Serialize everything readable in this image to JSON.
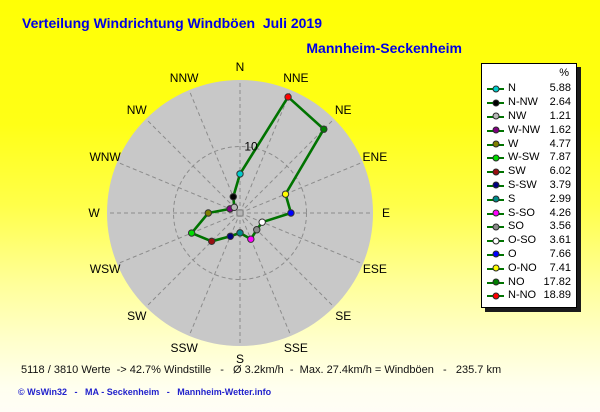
{
  "header": {
    "title": "Verteilung Windrichtung Windböen  Juli 2019",
    "subtitle": "Mannheim-Seckenheim"
  },
  "chart_data": {
    "type": "radar",
    "title": "Verteilung Windrichtung Windböen Juli 2019",
    "subtitle": "Mannheim-Seckenheim",
    "unit": "%",
    "axis_max": 20,
    "grid_circle_values": [
      10,
      20
    ],
    "scale_label": "10",
    "grid_on": true,
    "legend_position": "right",
    "line_color": "#007300",
    "disk_color": "#c8c8c8",
    "grid_color": "#8c8c8c",
    "points": [
      {
        "axis": "N",
        "label": "N",
        "value": 5.88,
        "color": "#00cccc"
      },
      {
        "axis": "NNE",
        "label": "N-NO",
        "value": 18.89,
        "color": "#ff0000"
      },
      {
        "axis": "NE",
        "label": "NO",
        "value": 17.82,
        "color": "#008000"
      },
      {
        "axis": "ENE",
        "label": "O-NO",
        "value": 7.41,
        "color": "#ffff00"
      },
      {
        "axis": "E",
        "label": "O",
        "value": 7.66,
        "color": "#0000ff"
      },
      {
        "axis": "ESE",
        "label": "O-SO",
        "value": 3.61,
        "color": "#ffffff"
      },
      {
        "axis": "SE",
        "label": "SO",
        "value": 3.56,
        "color": "#8a8a8a"
      },
      {
        "axis": "SSE",
        "label": "S-SO",
        "value": 4.26,
        "color": "#ff00ff"
      },
      {
        "axis": "S",
        "label": "S",
        "value": 2.99,
        "color": "#008b8b"
      },
      {
        "axis": "SSW",
        "label": "S-SW",
        "value": 3.79,
        "color": "#000080"
      },
      {
        "axis": "SW",
        "label": "SW",
        "value": 6.02,
        "color": "#991111"
      },
      {
        "axis": "WSW",
        "label": "W-SW",
        "value": 7.87,
        "color": "#00dd00"
      },
      {
        "axis": "W",
        "label": "W",
        "value": 4.77,
        "color": "#808000"
      },
      {
        "axis": "WNW",
        "label": "W-NW",
        "value": 1.62,
        "color": "#800080"
      },
      {
        "axis": "NW",
        "label": "NW",
        "value": 1.21,
        "color": "#b8b8b8"
      },
      {
        "axis": "NNW",
        "label": "N-NW",
        "value": 2.64,
        "color": "#000000"
      }
    ]
  },
  "legend": {
    "header": "%",
    "order": [
      0,
      15,
      14,
      13,
      12,
      11,
      10,
      9,
      8,
      7,
      6,
      5,
      4,
      3,
      2,
      1
    ]
  },
  "footer": {
    "stats": "5118 / 3810 Werte  -> 42.7% Windstille   -   Ø 3.2km/h  -  Max. 27.4km/h = Windböen   -   235.7 km",
    "copyright": "© WsWin32   -   MA - Seckenheim   -   Mannheim-Wetter.info"
  }
}
